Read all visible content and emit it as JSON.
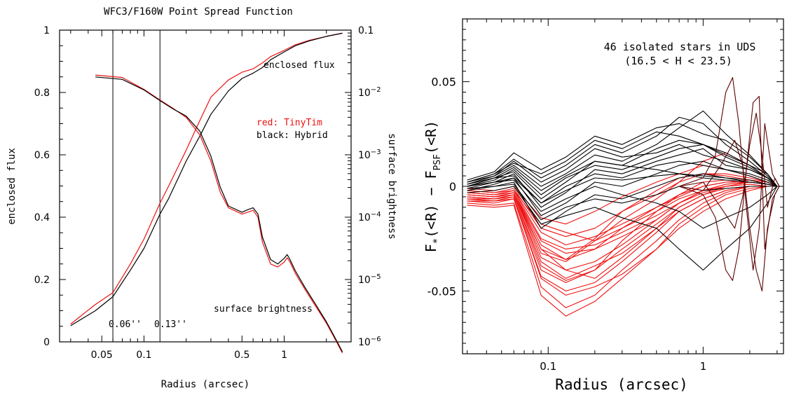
{
  "chart_data": [
    {
      "type": "line",
      "title": "WFC3/F160W Point Spread Function",
      "xlabel": "Radius (arcsec)",
      "ylabel_left": "enclosed flux",
      "ylabel_right": "surface brightness",
      "xscale": "log",
      "xlim": [
        0.025,
        3.0
      ],
      "ylim_left": [
        0,
        1
      ],
      "ylim_right_log10": [
        -6,
        -1
      ],
      "x_ticks": [
        {
          "v": 0.05,
          "label": "0.05"
        },
        {
          "v": 0.1,
          "label": "0.1"
        },
        {
          "v": 0.5,
          "label": "0.5"
        },
        {
          "v": 1,
          "label": "1"
        }
      ],
      "y_ticks_left": [
        {
          "v": 0,
          "label": "0"
        },
        {
          "v": 0.2,
          "label": "0.2"
        },
        {
          "v": 0.4,
          "label": "0.4"
        },
        {
          "v": 0.6,
          "label": "0.6"
        },
        {
          "v": 0.8,
          "label": "0.8"
        },
        {
          "v": 1,
          "label": "1"
        }
      ],
      "y_ticks_right": [
        {
          "exp": -1,
          "label": "0.1"
        },
        {
          "exp": -2,
          "label": "10",
          "sup": "−2"
        },
        {
          "exp": -3,
          "label": "10",
          "sup": "−3"
        },
        {
          "exp": -4,
          "label": "10",
          "sup": "−4"
        },
        {
          "exp": -5,
          "label": "10",
          "sup": "−5"
        },
        {
          "exp": -6,
          "label": "10",
          "sup": "−6"
        }
      ],
      "vlines": [
        {
          "x": 0.06,
          "label": "0.06''"
        },
        {
          "x": 0.13,
          "label": "0.13''"
        }
      ],
      "annotations": {
        "enclosed_flux": "enclosed flux",
        "surface_brightness": "surface brightness",
        "legend_red": "red: TinyTim",
        "legend_black": "black: Hybrid"
      },
      "colors": {
        "tinytim": "#ee1111",
        "hybrid": "#000000"
      },
      "series": [
        {
          "key": "ee_tinytim",
          "axis": "left",
          "color": "#ee1111",
          "x": [
            0.03,
            0.045,
            0.06,
            0.08,
            0.1,
            0.13,
            0.15,
            0.2,
            0.25,
            0.3,
            0.4,
            0.5,
            0.6,
            0.7,
            0.8,
            1.0,
            1.2,
            1.5,
            2.0,
            2.6
          ],
          "y": [
            0.057,
            0.12,
            0.158,
            0.25,
            0.33,
            0.445,
            0.5,
            0.615,
            0.71,
            0.785,
            0.84,
            0.865,
            0.876,
            0.895,
            0.915,
            0.935,
            0.953,
            0.967,
            0.98,
            0.99
          ]
        },
        {
          "key": "ee_hybrid",
          "axis": "left",
          "color": "#000000",
          "x": [
            0.03,
            0.045,
            0.06,
            0.08,
            0.1,
            0.13,
            0.15,
            0.2,
            0.25,
            0.3,
            0.4,
            0.5,
            0.6,
            0.7,
            0.8,
            1.0,
            1.2,
            1.5,
            2.0,
            2.6
          ],
          "y": [
            0.052,
            0.1,
            0.145,
            0.23,
            0.3,
            0.41,
            0.46,
            0.58,
            0.66,
            0.73,
            0.805,
            0.845,
            0.862,
            0.88,
            0.905,
            0.93,
            0.95,
            0.965,
            0.98,
            0.99
          ]
        },
        {
          "key": "sb_tinytim",
          "axis": "right",
          "color": "#ee1111",
          "x": [
            0.045,
            0.07,
            0.1,
            0.13,
            0.16,
            0.2,
            0.25,
            0.3,
            0.35,
            0.4,
            0.5,
            0.55,
            0.6,
            0.65,
            0.7,
            0.8,
            0.9,
            1.0,
            1.05,
            1.1,
            1.2,
            1.4,
            1.7,
            2.0,
            2.3,
            2.6
          ],
          "y": [
            -1.72,
            -1.76,
            -1.95,
            -2.12,
            -2.25,
            -2.4,
            -2.68,
            -3.1,
            -3.6,
            -3.85,
            -3.95,
            -3.92,
            -3.89,
            -4.0,
            -4.4,
            -4.75,
            -4.8,
            -4.72,
            -4.65,
            -4.72,
            -4.9,
            -5.15,
            -5.45,
            -5.7,
            -5.95,
            -6.18
          ]
        },
        {
          "key": "sb_hybrid",
          "axis": "right",
          "color": "#000000",
          "x": [
            0.045,
            0.07,
            0.1,
            0.13,
            0.16,
            0.2,
            0.25,
            0.3,
            0.35,
            0.4,
            0.5,
            0.55,
            0.6,
            0.65,
            0.7,
            0.8,
            0.9,
            1.0,
            1.05,
            1.1,
            1.2,
            1.4,
            1.7,
            2.0,
            2.3,
            2.6
          ],
          "y": [
            -1.75,
            -1.79,
            -1.96,
            -2.13,
            -2.26,
            -2.38,
            -2.62,
            -3.02,
            -3.52,
            -3.82,
            -3.92,
            -3.88,
            -3.85,
            -3.95,
            -4.32,
            -4.68,
            -4.75,
            -4.66,
            -4.6,
            -4.68,
            -4.86,
            -5.12,
            -5.42,
            -5.68,
            -5.93,
            -6.16
          ]
        }
      ]
    },
    {
      "type": "line",
      "title": "",
      "xlabel": "Radius (arcsec)",
      "ylabel": "F*(<R) − FPSF(<R)",
      "xscale": "log",
      "xlim": [
        0.028,
        3.3
      ],
      "ylim": [
        -0.08,
        0.08
      ],
      "x_ticks": [
        {
          "v": 0.1,
          "label": "0.1"
        },
        {
          "v": 1,
          "label": "1"
        }
      ],
      "y_ticks": [
        {
          "v": 0.05,
          "label": "0.05"
        },
        {
          "v": 0,
          "label": "0"
        },
        {
          "v": -0.05,
          "label": "-0.05"
        }
      ],
      "annotation_line1": "46 isolated stars in UDS",
      "annotation_line2": "(16.5 < H < 23.5)",
      "colors": {
        "tinytim": "#ee1111",
        "hybrid": "#000000",
        "dark": "#5a0000"
      },
      "x_grid": [
        0.03,
        0.045,
        0.06,
        0.09,
        0.13,
        0.2,
        0.3,
        0.5,
        0.7,
        1.0,
        1.4,
        2.0,
        2.6,
        3.0
      ],
      "series_black": [
        [
          0.0,
          0.004,
          0.007,
          -0.006,
          0.002,
          0.012,
          0.01,
          0.018,
          0.022,
          0.02,
          0.015,
          0.01,
          0.006,
          0
        ],
        [
          0.002,
          0.006,
          0.013,
          0.004,
          0.01,
          0.02,
          0.016,
          0.024,
          0.033,
          0.03,
          0.02,
          0.012,
          0.005,
          0
        ],
        [
          -0.001,
          0.002,
          0.006,
          -0.01,
          -0.003,
          0.008,
          0.006,
          0.012,
          0.015,
          0.018,
          0.01,
          0.008,
          0.004,
          0
        ],
        [
          0.001,
          0.005,
          0.01,
          0.0,
          0.006,
          0.015,
          0.012,
          0.02,
          0.028,
          0.036,
          0.025,
          0.015,
          0.006,
          0
        ],
        [
          -0.002,
          0.001,
          0.004,
          -0.014,
          -0.008,
          0.002,
          0.0,
          0.006,
          0.01,
          0.012,
          0.008,
          0.006,
          0.003,
          0
        ],
        [
          0.003,
          0.007,
          0.016,
          0.008,
          0.014,
          0.024,
          0.02,
          0.028,
          0.03,
          0.025,
          0.022,
          0.014,
          0.006,
          0
        ],
        [
          0.0,
          0.003,
          0.008,
          -0.004,
          0.004,
          0.01,
          0.008,
          0.014,
          0.018,
          0.02,
          0.016,
          0.01,
          0.004,
          0
        ],
        [
          -0.001,
          0.0,
          0.002,
          -0.02,
          -0.012,
          -0.004,
          -0.006,
          0.0,
          0.004,
          0.006,
          0.004,
          0.002,
          0.001,
          0
        ],
        [
          0.001,
          0.004,
          0.005,
          -0.008,
          0.0,
          0.006,
          0.004,
          0.01,
          0.012,
          0.01,
          0.008,
          0.005,
          0.002,
          0
        ],
        [
          0.002,
          0.005,
          0.012,
          0.002,
          0.008,
          0.018,
          0.014,
          0.016,
          0.02,
          0.015,
          0.012,
          0.008,
          0.004,
          0
        ],
        [
          -0.003,
          -0.002,
          0.0,
          -0.018,
          -0.014,
          -0.01,
          -0.015,
          -0.02,
          -0.03,
          -0.04,
          -0.03,
          -0.02,
          -0.008,
          0
        ],
        [
          0.0,
          0.002,
          0.003,
          -0.012,
          -0.006,
          0.0,
          -0.004,
          -0.008,
          -0.012,
          -0.02,
          -0.015,
          -0.01,
          -0.004,
          0
        ],
        [
          0.001,
          0.004,
          0.009,
          -0.002,
          0.005,
          0.012,
          0.01,
          0.008,
          0.006,
          0.004,
          0.003,
          0.002,
          0.001,
          0
        ],
        [
          -0.002,
          0.0,
          0.001,
          -0.016,
          -0.01,
          -0.006,
          -0.008,
          -0.004,
          0.0,
          -0.002,
          -0.001,
          0.0,
          0.0,
          0
        ],
        [
          0.002,
          0.006,
          0.011,
          0.006,
          0.012,
          0.022,
          0.018,
          0.026,
          0.024,
          0.02,
          0.014,
          0.009,
          0.004,
          0
        ],
        [
          0.0,
          0.002,
          0.004,
          -0.008,
          -0.002,
          0.004,
          0.003,
          0.005,
          0.006,
          0.005,
          0.004,
          0.003,
          0.001,
          0
        ]
      ],
      "series_red": [
        [
          -0.004,
          -0.005,
          -0.003,
          -0.03,
          -0.035,
          -0.03,
          -0.02,
          -0.01,
          -0.005,
          0.0,
          0.002,
          0.003,
          0.002,
          0
        ],
        [
          -0.006,
          -0.006,
          -0.005,
          -0.038,
          -0.045,
          -0.04,
          -0.03,
          -0.018,
          -0.01,
          -0.004,
          0.0,
          0.002,
          0.001,
          0
        ],
        [
          -0.003,
          -0.004,
          -0.002,
          -0.025,
          -0.03,
          -0.028,
          -0.022,
          -0.014,
          -0.008,
          -0.002,
          0.001,
          0.002,
          0.001,
          0
        ],
        [
          -0.008,
          -0.009,
          -0.008,
          -0.048,
          -0.058,
          -0.052,
          -0.04,
          -0.026,
          -0.016,
          -0.008,
          -0.003,
          0.0,
          0.0,
          0
        ],
        [
          -0.002,
          -0.003,
          -0.001,
          -0.02,
          -0.024,
          -0.02,
          -0.012,
          -0.004,
          0.002,
          0.006,
          0.006,
          0.004,
          0.002,
          0
        ],
        [
          -0.005,
          -0.006,
          -0.004,
          -0.034,
          -0.04,
          -0.036,
          -0.028,
          -0.016,
          -0.008,
          -0.002,
          0.001,
          0.002,
          0.001,
          0
        ],
        [
          -0.007,
          -0.008,
          -0.006,
          -0.043,
          -0.05,
          -0.046,
          -0.036,
          -0.022,
          -0.012,
          -0.006,
          -0.002,
          0.0,
          0.0,
          0
        ],
        [
          -0.001,
          -0.002,
          0.0,
          -0.015,
          -0.018,
          -0.012,
          -0.005,
          0.002,
          0.006,
          0.01,
          0.008,
          0.005,
          0.002,
          0
        ],
        [
          -0.004,
          -0.005,
          -0.003,
          -0.028,
          -0.035,
          -0.025,
          -0.012,
          -0.002,
          0.004,
          0.006,
          0.005,
          0.003,
          0.001,
          0
        ],
        [
          -0.006,
          -0.007,
          -0.005,
          -0.036,
          -0.044,
          -0.038,
          -0.032,
          -0.02,
          -0.012,
          -0.006,
          -0.002,
          0.0,
          0.0,
          0
        ],
        [
          -0.009,
          -0.01,
          -0.009,
          -0.052,
          -0.062,
          -0.055,
          -0.044,
          -0.03,
          -0.018,
          -0.01,
          -0.004,
          -0.001,
          0.0,
          0
        ],
        [
          -0.003,
          -0.004,
          -0.002,
          -0.022,
          -0.028,
          -0.024,
          -0.018,
          -0.01,
          -0.004,
          0.0,
          0.002,
          0.002,
          0.001,
          0
        ],
        [
          -0.005,
          -0.006,
          -0.004,
          -0.032,
          -0.036,
          -0.026,
          -0.016,
          -0.006,
          0.002,
          0.012,
          0.016,
          0.01,
          0.004,
          0
        ],
        [
          -0.004,
          -0.005,
          -0.004,
          -0.03,
          -0.04,
          -0.044,
          -0.034,
          -0.02,
          -0.01,
          -0.004,
          -0.001,
          0.0,
          0.0,
          0
        ],
        [
          -0.007,
          -0.007,
          -0.006,
          -0.04,
          -0.046,
          -0.04,
          -0.026,
          -0.012,
          -0.004,
          0.002,
          0.003,
          0.002,
          0.001,
          0
        ],
        [
          -0.002,
          -0.003,
          -0.002,
          -0.018,
          -0.022,
          -0.026,
          -0.02,
          -0.012,
          -0.006,
          -0.002,
          0.0,
          0.001,
          0.0,
          0
        ],
        [
          -0.006,
          -0.007,
          -0.006,
          -0.044,
          -0.052,
          -0.048,
          -0.042,
          -0.03,
          -0.02,
          -0.012,
          -0.006,
          -0.002,
          0.0,
          0
        ],
        [
          -0.003,
          -0.004,
          -0.003,
          -0.026,
          -0.032,
          -0.03,
          -0.024,
          -0.016,
          -0.008,
          -0.003,
          0.0,
          0.001,
          0.0,
          0
        ]
      ],
      "series_dark": [
        {
          "x": [
            0.7,
            1.0,
            1.2,
            1.4,
            1.55,
            1.7,
            1.9,
            2.1,
            2.3,
            2.5,
            2.8,
            3.1
          ],
          "y": [
            0.0,
            0.004,
            0.015,
            0.045,
            0.052,
            0.03,
            -0.01,
            -0.04,
            -0.02,
            0.03,
            0.006,
            0.0
          ]
        },
        {
          "x": [
            0.7,
            1.0,
            1.2,
            1.4,
            1.55,
            1.7,
            1.9,
            2.1,
            2.3,
            2.5,
            2.8,
            3.1
          ],
          "y": [
            0.0,
            -0.004,
            -0.015,
            -0.04,
            -0.045,
            -0.03,
            0.008,
            0.04,
            0.043,
            -0.03,
            -0.006,
            0.0
          ]
        },
        {
          "x": [
            0.7,
            1.0,
            1.3,
            1.6,
            1.8,
            2.0,
            2.2,
            2.4,
            2.6,
            2.9,
            3.1
          ],
          "y": [
            0.0,
            0.002,
            -0.01,
            -0.02,
            -0.005,
            0.02,
            0.035,
            0.015,
            -0.01,
            0.004,
            0.0
          ]
        },
        {
          "x": [
            0.7,
            1.0,
            1.3,
            1.6,
            1.8,
            2.0,
            2.2,
            2.4,
            2.6,
            2.9,
            3.1
          ],
          "y": [
            0.0,
            -0.002,
            0.01,
            0.022,
            0.01,
            -0.02,
            -0.04,
            -0.05,
            -0.02,
            -0.004,
            0.0
          ]
        }
      ]
    }
  ]
}
